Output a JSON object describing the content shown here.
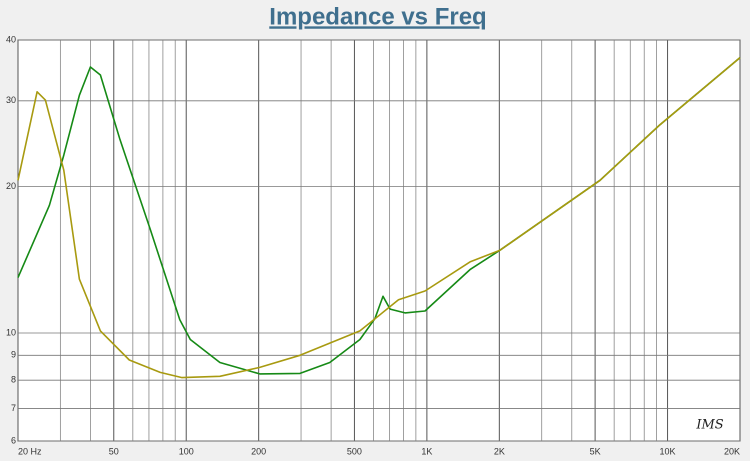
{
  "chart_data": {
    "type": "line",
    "title": "Impedance vs Freq",
    "annotation": "IMS",
    "xscale": "log",
    "yscale": "log",
    "grid": true,
    "xlim": [
      20,
      20000
    ],
    "ylim": [
      6,
      40
    ],
    "xticks": [
      {
        "value": 20,
        "label": "20 Hz"
      },
      50,
      100,
      200,
      500,
      {
        "value": 1000,
        "label": "1K"
      },
      {
        "value": 2000,
        "label": "2K"
      },
      {
        "value": 5000,
        "label": "5K"
      },
      {
        "value": 10000,
        "label": "10K"
      },
      {
        "value": 20000,
        "label": "20K"
      }
    ],
    "xgrid_minor": [
      30,
      40,
      60,
      70,
      80,
      90,
      300,
      400,
      600,
      700,
      800,
      900,
      3000,
      4000,
      6000,
      7000,
      8000,
      9000
    ],
    "yticks": [
      6,
      7,
      8,
      9,
      10,
      20,
      30,
      40
    ],
    "series": [
      {
        "color": "#168a16",
        "x": [
          20,
          27,
          31,
          36,
          40,
          44,
          53,
          71,
          94,
          104,
          138,
          202,
          297,
          395,
          527,
          608,
          657,
          703,
          811,
          982,
          1510,
          2013,
          5240,
          9300,
          20000
        ],
        "values": [
          13.0,
          18.3,
          23.2,
          30.8,
          35.2,
          33.9,
          25.0,
          16.3,
          10.65,
          9.7,
          8.7,
          8.24,
          8.26,
          8.7,
          9.7,
          10.7,
          11.9,
          11.2,
          11.0,
          11.1,
          13.5,
          14.8,
          20.6,
          26.8,
          36.8
        ]
      },
      {
        "color": "#a89a10",
        "x": [
          20,
          24,
          26,
          31,
          36,
          44,
          58,
          78,
          96,
          138,
          202,
          297,
          527,
          762,
          982,
          1510,
          2013,
          5240,
          9300,
          20000
        ],
        "values": [
          20.6,
          31.3,
          30.1,
          21.6,
          12.9,
          10.1,
          8.8,
          8.3,
          8.1,
          8.15,
          8.5,
          9.0,
          10.1,
          11.7,
          12.2,
          14.0,
          14.8,
          20.6,
          26.8,
          36.8
        ]
      }
    ]
  }
}
